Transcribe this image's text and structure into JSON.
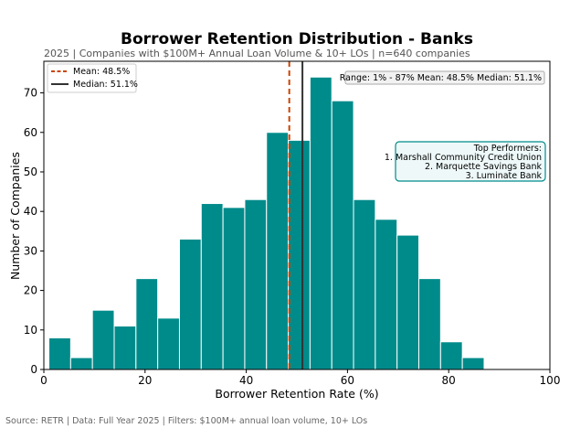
{
  "chart_data": {
    "type": "bar",
    "title": "Borrower Retention Distribution - Banks",
    "subtitle": "2025 | Companies with $100M+ Annual Loan Volume & 10+ LOs | n=640 companies",
    "xlabel": "Borrower Retention Rate (%)",
    "ylabel": "Number of Companies",
    "xlim": [
      0,
      100
    ],
    "ylim": [
      0,
      78
    ],
    "xticks": [
      0,
      20,
      40,
      60,
      80,
      100
    ],
    "yticks": [
      0,
      10,
      20,
      30,
      40,
      50,
      60,
      70
    ],
    "bar_color": "#008b8b",
    "bins": [
      {
        "start": 1.0,
        "end": 5.3,
        "count": 8
      },
      {
        "start": 5.3,
        "end": 9.6,
        "count": 3
      },
      {
        "start": 9.6,
        "end": 13.9,
        "count": 15
      },
      {
        "start": 13.9,
        "end": 18.2,
        "count": 11
      },
      {
        "start": 18.2,
        "end": 22.5,
        "count": 23
      },
      {
        "start": 22.5,
        "end": 26.8,
        "count": 13
      },
      {
        "start": 26.8,
        "end": 31.1,
        "count": 33
      },
      {
        "start": 31.1,
        "end": 35.4,
        "count": 42
      },
      {
        "start": 35.4,
        "end": 39.7,
        "count": 41
      },
      {
        "start": 39.7,
        "end": 44.0,
        "count": 43
      },
      {
        "start": 44.0,
        "end": 48.3,
        "count": 60
      },
      {
        "start": 48.3,
        "end": 52.6,
        "count": 58
      },
      {
        "start": 52.6,
        "end": 56.9,
        "count": 74
      },
      {
        "start": 56.9,
        "end": 61.2,
        "count": 68
      },
      {
        "start": 61.2,
        "end": 65.5,
        "count": 43
      },
      {
        "start": 65.5,
        "end": 69.8,
        "count": 38
      },
      {
        "start": 69.8,
        "end": 74.1,
        "count": 34
      },
      {
        "start": 74.1,
        "end": 78.4,
        "count": 23
      },
      {
        "start": 78.4,
        "end": 82.7,
        "count": 7
      },
      {
        "start": 82.7,
        "end": 87.0,
        "count": 3
      }
    ],
    "mean": {
      "value": 48.5,
      "label": "Mean: 48.5%",
      "color": "#cc4400"
    },
    "median": {
      "value": 51.1,
      "label": "Median: 51.1%",
      "color": "#333333"
    },
    "legend_position": "top-left",
    "stats_box": "Range: 1% - 87%   Mean: 48.5%   Median: 51.1%",
    "top_performers": {
      "heading": "Top Performers:",
      "items": [
        "1. Marshall Community Credit Union",
        "2. Marquette Savings Bank",
        "3. Luminate Bank"
      ]
    },
    "grid": false
  },
  "footer": {
    "source": "Source: RETR | Data: Full Year 2025 | Filters: $100M+ annual loan volume, 10+ LOs"
  }
}
